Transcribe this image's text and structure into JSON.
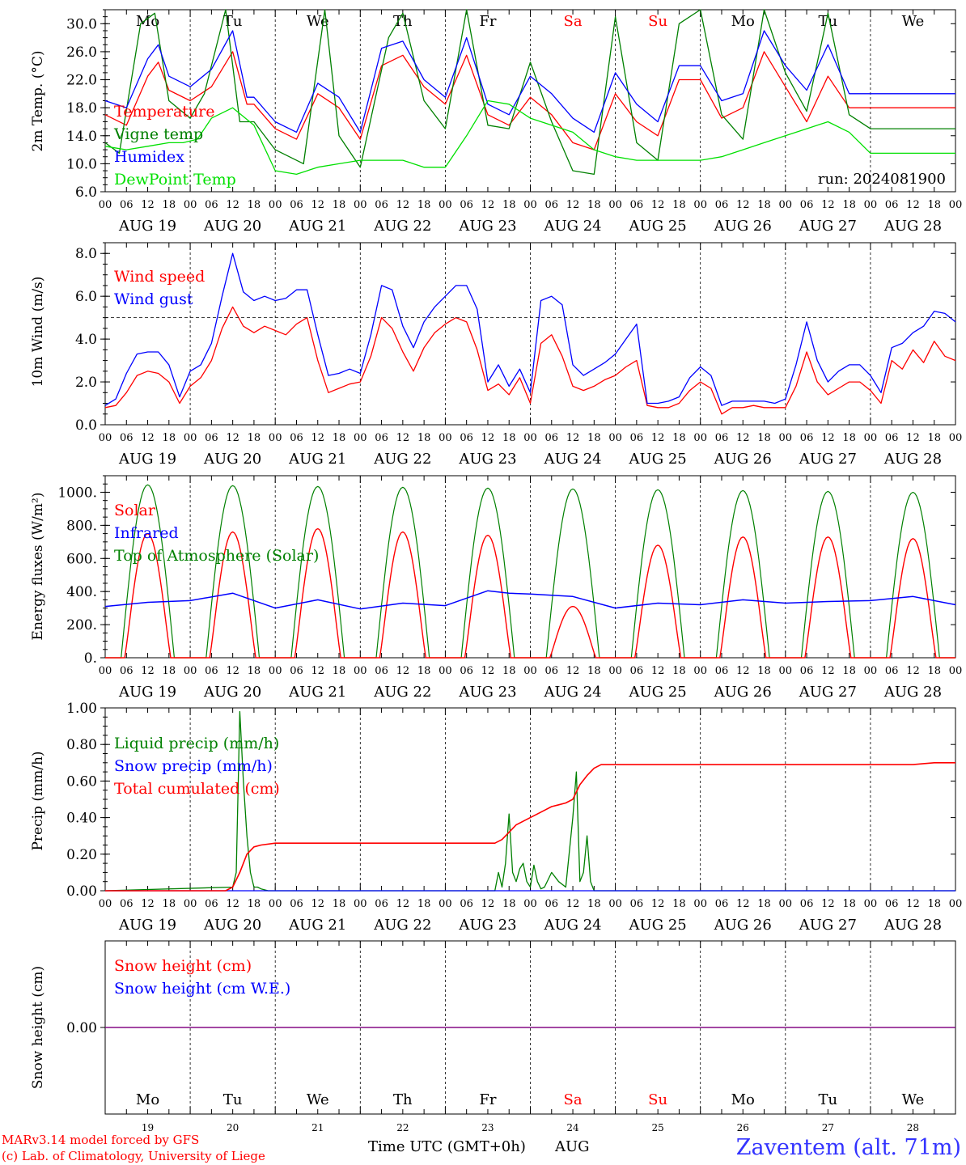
{
  "days": [
    "AUG 19",
    "AUG 20",
    "AUG 21",
    "AUG 22",
    "AUG 23",
    "AUG 24",
    "AUG 25",
    "AUG 26",
    "AUG 27",
    "AUG 28"
  ],
  "weekdays": [
    "Mo",
    "Tu",
    "We",
    "Th",
    "Fr",
    "Sa",
    "Su",
    "Mo",
    "Tu",
    "We"
  ],
  "day_numbers": [
    "19",
    "20",
    "21",
    "22",
    "23",
    "24",
    "25",
    "26",
    "27",
    "28"
  ],
  "hour_ticks": [
    "00",
    "06",
    "12",
    "18"
  ],
  "end_tick": "00",
  "colors": {
    "red": "#ff0000",
    "green": "#008000",
    "blue": "#0000ff",
    "lime": "#00e000",
    "weekend": "#ff0000",
    "weekday": "#000000",
    "snow0": "#7f007f"
  },
  "footer": {
    "credit1": "MARv3.14 model forced by GFS",
    "credit2": "(c) Lab. of Climatology, University of Liege",
    "xlabel": "Time UTC (GMT+0h)",
    "month": "AUG",
    "station": "Zaventem (alt. 71m)"
  },
  "chart_data": [
    {
      "type": "line",
      "ylabel": "2m Temp. (°C)",
      "ylim": [
        6,
        32
      ],
      "yticks": [
        "6.0",
        "10.0",
        "14.0",
        "18.0",
        "22.0",
        "26.0",
        "30.0"
      ],
      "annotation": "run: 2024081900",
      "x_unit": "hours since AUG 19 00 UTC",
      "series": [
        {
          "name": "Temperature",
          "color": "red",
          "x": [
            0,
            6,
            12,
            15,
            18,
            24,
            30,
            36,
            40,
            42,
            48,
            54,
            60,
            66,
            72,
            78,
            84,
            90,
            96,
            102,
            108,
            114,
            120,
            126,
            132,
            138,
            144,
            150,
            156,
            162,
            168,
            174,
            180,
            186,
            192,
            198,
            204,
            210,
            216,
            222,
            228,
            234,
            240
          ],
          "y": [
            17.0,
            15.5,
            22.5,
            24.5,
            20.5,
            19.0,
            21.0,
            26.0,
            18.5,
            18.5,
            15.0,
            13.5,
            20.0,
            18.0,
            13.5,
            24.0,
            25.5,
            21.0,
            18.5,
            25.5,
            17.0,
            15.5,
            19.5,
            17.0,
            13.0,
            12.0,
            20.0,
            16.0,
            14.0,
            22.0,
            22.0,
            16.5,
            18.0,
            26.0,
            21.0,
            16.0,
            22.5,
            18.0,
            18.0,
            18.0,
            18.0,
            18.0,
            18.0
          ]
        },
        {
          "name": "Vigne temp",
          "color": "green",
          "x": [
            0,
            4,
            10,
            14,
            18,
            24,
            28,
            34,
            38,
            42,
            48,
            56,
            62,
            66,
            72,
            80,
            84,
            90,
            96,
            102,
            108,
            114,
            120,
            126,
            132,
            138,
            144,
            150,
            156,
            162,
            168,
            174,
            180,
            186,
            192,
            198,
            204,
            210,
            216,
            222,
            228,
            234,
            240
          ],
          "y": [
            13.0,
            11.5,
            30.0,
            31.5,
            19.0,
            16.5,
            20.0,
            32.0,
            16.0,
            16.0,
            12.0,
            10.0,
            32.0,
            14.0,
            9.5,
            28.0,
            31.5,
            19.0,
            15.0,
            32.0,
            15.5,
            15.0,
            24.5,
            16.0,
            9.0,
            8.5,
            31.0,
            13.0,
            10.5,
            30.0,
            32.0,
            17.0,
            13.5,
            32.0,
            23.0,
            17.5,
            31.5,
            17.0,
            15.0,
            15.0,
            15.0,
            15.0,
            15.0
          ]
        },
        {
          "name": "Humidex",
          "color": "blue",
          "x": [
            0,
            6,
            12,
            15,
            18,
            24,
            30,
            36,
            40,
            42,
            48,
            54,
            60,
            66,
            72,
            78,
            84,
            90,
            96,
            102,
            108,
            114,
            120,
            126,
            132,
            138,
            144,
            150,
            156,
            162,
            168,
            174,
            180,
            186,
            192,
            198,
            204,
            210,
            216,
            222,
            228,
            234,
            240
          ],
          "y": [
            19.0,
            18.0,
            25.0,
            27.0,
            22.5,
            21.0,
            23.5,
            29.0,
            19.5,
            19.5,
            16.0,
            14.5,
            21.5,
            19.5,
            14.5,
            26.5,
            27.5,
            22.0,
            19.5,
            28.0,
            18.5,
            17.0,
            22.5,
            20.0,
            16.5,
            14.5,
            23.0,
            18.5,
            16.0,
            24.0,
            24.0,
            19.0,
            20.0,
            29.0,
            24.0,
            20.5,
            27.0,
            20.0,
            20.0,
            20.0,
            20.0,
            20.0,
            20.0
          ]
        },
        {
          "name": "DewPoint Temp",
          "color": "lime",
          "x": [
            0,
            6,
            12,
            18,
            22,
            26,
            30,
            36,
            42,
            48,
            54,
            60,
            66,
            72,
            78,
            84,
            90,
            96,
            102,
            108,
            114,
            120,
            126,
            132,
            138,
            144,
            150,
            156,
            162,
            168,
            174,
            180,
            186,
            192,
            198,
            204,
            210,
            216,
            222,
            228,
            234,
            240
          ],
          "y": [
            12.5,
            12.0,
            12.5,
            13.0,
            13.0,
            13.5,
            16.5,
            18.0,
            15.5,
            9.0,
            8.5,
            9.5,
            10.0,
            10.5,
            10.5,
            10.5,
            9.5,
            9.5,
            14.0,
            19.0,
            18.5,
            16.5,
            15.5,
            14.5,
            12.0,
            11.0,
            10.5,
            10.5,
            10.5,
            10.5,
            11.0,
            12.0,
            13.0,
            14.0,
            15.0,
            16.0,
            14.5,
            11.5,
            11.5,
            11.5,
            11.5,
            11.5
          ]
        }
      ],
      "legend_placement": "left"
    },
    {
      "type": "line",
      "ylabel": "10m Wind (m/s)",
      "ylim": [
        0,
        8.5
      ],
      "yticks": [
        "0.0",
        "2.0",
        "4.0",
        "6.0",
        "8.0"
      ],
      "ref_line": 5.0,
      "x_unit": "hours since AUG 19 00 UTC",
      "series": [
        {
          "name": "Wind speed",
          "color": "red",
          "x": [
            0,
            3,
            6,
            9,
            12,
            15,
            18,
            21,
            24,
            27,
            30,
            33,
            36,
            39,
            42,
            45,
            48,
            51,
            54,
            57,
            60,
            63,
            66,
            69,
            72,
            75,
            78,
            81,
            84,
            87,
            90,
            93,
            96,
            99,
            102,
            105,
            108,
            111,
            114,
            117,
            120,
            123,
            126,
            129,
            132,
            135,
            138,
            141,
            144,
            147,
            150,
            153,
            156,
            159,
            162,
            165,
            168,
            171,
            174,
            177,
            180,
            183,
            186,
            189,
            192,
            195,
            198,
            201,
            204,
            207,
            210,
            213,
            216,
            219,
            222,
            225,
            228,
            231,
            234,
            237,
            240
          ],
          "y": [
            0.8,
            0.9,
            1.5,
            2.3,
            2.5,
            2.4,
            2.0,
            1.0,
            1.8,
            2.2,
            3.0,
            4.5,
            5.5,
            4.6,
            4.3,
            4.6,
            4.4,
            4.2,
            4.7,
            5.0,
            3.0,
            1.5,
            1.7,
            1.9,
            2.0,
            3.2,
            5.0,
            4.5,
            3.4,
            2.5,
            3.6,
            4.3,
            4.7,
            5.0,
            4.8,
            3.5,
            1.6,
            1.9,
            1.4,
            2.2,
            1.0,
            3.8,
            4.2,
            3.2,
            1.8,
            1.6,
            1.8,
            2.1,
            2.3,
            2.7,
            3.0,
            0.9,
            0.8,
            0.8,
            1.0,
            1.6,
            2.0,
            1.7,
            0.5,
            0.8,
            0.8,
            0.9,
            0.8,
            0.8,
            0.8,
            1.8,
            3.4,
            2.0,
            1.4,
            1.7,
            2.0,
            2.0,
            1.6,
            1.0,
            3.0,
            2.6,
            3.5,
            2.9,
            3.9,
            3.2,
            3.0
          ]
        },
        {
          "name": "Wind gust",
          "color": "blue",
          "x": [
            0,
            3,
            6,
            9,
            12,
            15,
            18,
            21,
            24,
            27,
            30,
            33,
            36,
            39,
            42,
            45,
            48,
            51,
            54,
            57,
            60,
            63,
            66,
            69,
            72,
            75,
            78,
            81,
            84,
            87,
            90,
            93,
            96,
            99,
            102,
            105,
            108,
            111,
            114,
            117,
            120,
            123,
            126,
            129,
            132,
            135,
            138,
            141,
            144,
            147,
            150,
            153,
            156,
            159,
            162,
            165,
            168,
            171,
            174,
            177,
            180,
            183,
            186,
            189,
            192,
            195,
            198,
            201,
            204,
            207,
            210,
            213,
            216,
            219,
            222,
            225,
            228,
            231,
            234,
            237,
            240
          ],
          "y": [
            0.9,
            1.2,
            2.4,
            3.3,
            3.4,
            3.4,
            2.8,
            1.3,
            2.5,
            2.8,
            3.8,
            6.0,
            8.0,
            6.2,
            5.8,
            6.0,
            5.8,
            5.9,
            6.3,
            6.3,
            4.2,
            2.3,
            2.4,
            2.6,
            2.4,
            4.2,
            6.5,
            6.3,
            4.6,
            3.6,
            4.8,
            5.5,
            6.0,
            6.5,
            6.5,
            5.4,
            2.0,
            2.8,
            1.8,
            2.6,
            1.5,
            5.8,
            6.0,
            5.6,
            2.8,
            2.3,
            2.6,
            2.9,
            3.3,
            4.0,
            4.7,
            1.0,
            1.0,
            1.1,
            1.3,
            2.2,
            2.7,
            2.3,
            0.9,
            1.1,
            1.1,
            1.1,
            1.1,
            1.0,
            1.2,
            2.8,
            4.8,
            3.0,
            2.0,
            2.5,
            2.8,
            2.8,
            2.3,
            1.5,
            3.6,
            3.8,
            4.3,
            4.6,
            5.3,
            5.2,
            4.8
          ]
        }
      ],
      "legend_placement": "left"
    },
    {
      "type": "line",
      "ylabel": "Energy fluxes (W/m²)",
      "ylim": [
        0,
        1100
      ],
      "yticks": [
        "0.",
        "200.",
        "400.",
        "600.",
        "800.",
        "1000."
      ],
      "x_unit": "hours since AUG 19 00 UTC",
      "day_peaks": {
        "toa_peak": [
          1045,
          1040,
          1035,
          1030,
          1025,
          1020,
          1015,
          1010,
          1005,
          1000
        ],
        "solar_peak": [
          750,
          760,
          780,
          760,
          740,
          310,
          680,
          730,
          730,
          720
        ]
      },
      "series": [
        {
          "name": "Solar",
          "color": "red"
        },
        {
          "name": "Infrared",
          "color": "blue",
          "x": [
            0,
            12,
            24,
            36,
            48,
            60,
            72,
            84,
            96,
            108,
            114,
            120,
            132,
            144,
            156,
            168,
            180,
            192,
            204,
            216,
            228,
            240
          ],
          "y": [
            310,
            335,
            345,
            390,
            300,
            350,
            295,
            330,
            315,
            405,
            390,
            385,
            370,
            300,
            330,
            320,
            350,
            330,
            340,
            345,
            370,
            320
          ]
        },
        {
          "name": "Top of Atmosphere (Solar)",
          "color": "green"
        }
      ],
      "legend_placement": "left"
    },
    {
      "type": "line",
      "ylabel": "Precip (mm/h)",
      "ylim": [
        0,
        1.0
      ],
      "yticks": [
        "0.00",
        "0.20",
        "0.40",
        "0.60",
        "0.80",
        "1.00"
      ],
      "x_unit": "hours since AUG 19 00 UTC",
      "series": [
        {
          "name": "Liquid precip (mm/h)",
          "color": "green",
          "x": [
            0,
            36,
            37,
            38,
            39,
            40,
            41,
            42,
            43,
            44,
            46,
            48,
            110,
            111,
            112,
            113,
            114,
            115,
            116,
            117,
            118,
            119,
            120,
            121,
            122,
            123,
            124,
            126,
            128,
            130,
            132,
            133,
            134,
            135,
            136,
            137,
            138,
            139,
            140,
            240
          ],
          "y": [
            0,
            0.02,
            0.1,
            0.98,
            0.6,
            0.3,
            0.1,
            0.02,
            0.02,
            0.01,
            0,
            0,
            0,
            0.1,
            0.02,
            0.15,
            0.42,
            0.1,
            0.05,
            0.12,
            0.15,
            0.05,
            0.02,
            0.14,
            0.05,
            0.01,
            0.02,
            0.1,
            0.05,
            0.02,
            0.4,
            0.65,
            0.05,
            0.1,
            0.3,
            0.05,
            0,
            0,
            0,
            0
          ]
        },
        {
          "name": "Snow precip (mm/h)",
          "color": "blue",
          "x": [
            0,
            240
          ],
          "y": [
            0,
            0
          ]
        },
        {
          "name": "Total cumulated (cm)",
          "color": "red",
          "x": [
            0,
            34,
            36,
            38,
            40,
            42,
            44,
            48,
            60,
            72,
            84,
            96,
            110,
            112,
            114,
            116,
            118,
            120,
            122,
            124,
            126,
            128,
            130,
            132,
            134,
            136,
            138,
            140,
            144,
            168,
            192,
            216,
            228,
            234,
            240
          ],
          "y": [
            0,
            0,
            0.02,
            0.1,
            0.2,
            0.24,
            0.25,
            0.26,
            0.26,
            0.26,
            0.26,
            0.26,
            0.26,
            0.28,
            0.32,
            0.36,
            0.38,
            0.4,
            0.42,
            0.44,
            0.46,
            0.47,
            0.48,
            0.5,
            0.58,
            0.63,
            0.67,
            0.69,
            0.69,
            0.69,
            0.69,
            0.69,
            0.69,
            0.7,
            0.7
          ]
        }
      ],
      "legend_placement": "left"
    },
    {
      "type": "line",
      "ylabel": "Snow height (cm)",
      "ylim": [
        -1,
        1
      ],
      "yticks": [
        "0.00"
      ],
      "x_unit": "hours since AUG 19 00 UTC",
      "series": [
        {
          "name": "Snow height (cm)",
          "color": "red",
          "x": [
            0,
            240
          ],
          "y": [
            0,
            0
          ]
        },
        {
          "name": "Snow height (cm W.E.)",
          "color": "blue",
          "x": [
            0,
            240
          ],
          "y": [
            0,
            0
          ]
        }
      ],
      "legend_placement": "left"
    }
  ]
}
